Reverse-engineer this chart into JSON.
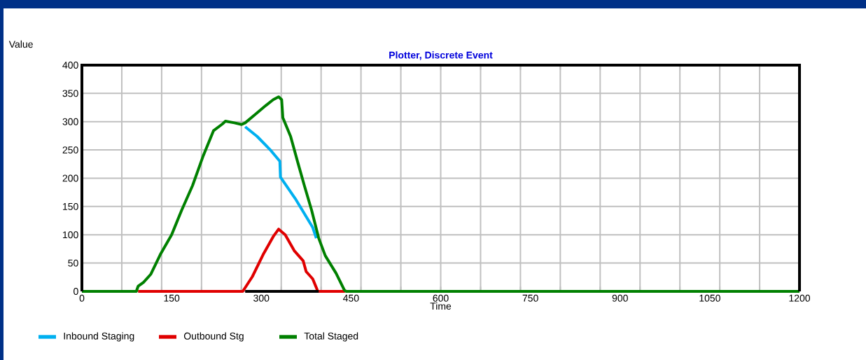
{
  "chart_data": {
    "type": "line",
    "title": "Plotter, Discrete Event",
    "xlabel": "Time",
    "ylabel": "Value",
    "xlim": [
      0,
      1200
    ],
    "ylim": [
      0,
      400
    ],
    "xticks": [
      0,
      150,
      300,
      450,
      600,
      750,
      900,
      1050,
      1200,
      {
        "value": 66.67,
        "label": null
      },
      {
        "value": 133.33,
        "label": null
      },
      {
        "value": 200,
        "label": null
      },
      {
        "value": 266.67,
        "label": null
      },
      {
        "value": 333.33,
        "label": null
      },
      {
        "value": 400,
        "label": null
      },
      {
        "value": 466.67,
        "label": null
      },
      {
        "value": 533.33,
        "label": null
      },
      {
        "value": 600,
        "label": null
      },
      {
        "value": 666.67,
        "label": null
      },
      {
        "value": 733.33,
        "label": null
      },
      {
        "value": 800,
        "label": null
      },
      {
        "value": 866.67,
        "label": null
      },
      {
        "value": 933.33,
        "label": null
      },
      {
        "value": 1000,
        "label": null
      },
      {
        "value": 1066.67,
        "label": null
      },
      {
        "value": 1133.33,
        "label": null
      }
    ],
    "yticks": [
      0,
      50,
      100,
      150,
      200,
      250,
      300,
      350,
      400
    ],
    "grid": true,
    "legend": "bottom",
    "line_style": "solid",
    "marker": "none",
    "series": [
      {
        "name": "Inbound Staging",
        "color": "#00b0f0",
        "x": [
          273,
          293,
          316,
          331,
          332,
          358,
          386,
          392
        ],
        "values": [
          291,
          274,
          249,
          230,
          202,
          162,
          113,
          94
        ]
      },
      {
        "name": "Outbound Stg",
        "color": "#e00000",
        "x": [
          94,
          269,
          285,
          304,
          320,
          329,
          340,
          355,
          370,
          375,
          386,
          393,
          394,
          440
        ],
        "values": [
          0,
          0,
          26,
          67,
          97,
          110,
          100,
          72,
          54,
          35,
          22,
          4,
          0,
          0
        ]
      },
      {
        "name": "Total Staged",
        "color": "#008000",
        "x": [
          0,
          91,
          94,
          103,
          115,
          132,
          150,
          167,
          185,
          203,
          220,
          235,
          240,
          255,
          267,
          273,
          290,
          308,
          320,
          329,
          334,
          336,
          349,
          361,
          372,
          384,
          396,
          407,
          425,
          439,
          442,
          1200
        ],
        "values": [
          0,
          0,
          9,
          16,
          30,
          67,
          100,
          144,
          187,
          240,
          284,
          296,
          301,
          298,
          295,
          298,
          313,
          329,
          339,
          344,
          339,
          307,
          274,
          228,
          187,
          144,
          94,
          63,
          32,
          2,
          0,
          0
        ]
      },
      {
        "color": "#000000",
        "x": [
          273,
          396
        ],
        "values": [
          0,
          0
        ]
      }
    ]
  }
}
